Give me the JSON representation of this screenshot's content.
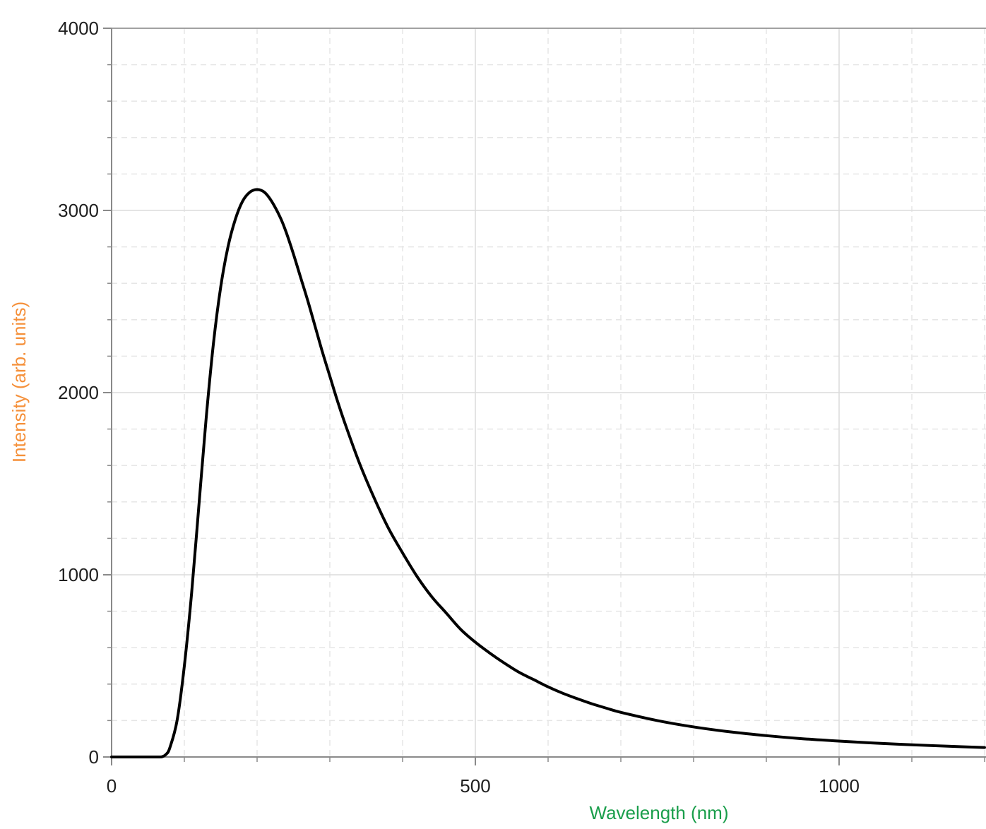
{
  "chart_data": {
    "type": "line",
    "title": "",
    "xlabel": "Wavelength (nm)",
    "ylabel": "Intensity (arb. units)",
    "xlim": [
      0,
      1200
    ],
    "ylim": [
      0,
      4000
    ],
    "x_ticks": [
      0,
      500,
      1000
    ],
    "y_ticks": [
      0,
      1000,
      2000,
      3000,
      4000
    ],
    "x_minor_step": 100,
    "y_minor_step": 200,
    "grid": true,
    "legend": "none",
    "colors": {
      "line": "#000000",
      "xlabel": "#1a9e4b",
      "ylabel": "#f5903a",
      "grid_major": "#dcdcdc",
      "grid_minor": "#e6e6e6",
      "axis": "#8a8a8a"
    },
    "series": [
      {
        "x": [
          0,
          50,
          65,
          70,
          75,
          80,
          90,
          100,
          110,
          120,
          130,
          140,
          150,
          160,
          170,
          180,
          190,
          200,
          210,
          220,
          232,
          240,
          250,
          260,
          270,
          280,
          290,
          300,
          310,
          320,
          340,
          360,
          380,
          400,
          420,
          440,
          460,
          480,
          500,
          520,
          540,
          560,
          580,
          600,
          620,
          640,
          660,
          680,
          700,
          750,
          800,
          850,
          900,
          950,
          1000,
          1050,
          1100,
          1150,
          1200
        ],
        "y": [
          0,
          0,
          0,
          2,
          15,
          50,
          200,
          500,
          900,
          1380,
          1860,
          2270,
          2580,
          2800,
          2950,
          3050,
          3100,
          3115,
          3100,
          3050,
          2960,
          2880,
          2760,
          2630,
          2500,
          2360,
          2220,
          2090,
          1960,
          1840,
          1620,
          1430,
          1260,
          1120,
          990,
          880,
          790,
          700,
          630,
          570,
          515,
          465,
          425,
          385,
          350,
          320,
          292,
          268,
          245,
          200,
          165,
          138,
          117,
          100,
          87,
          76,
          67,
          59,
          52
        ]
      }
    ]
  }
}
